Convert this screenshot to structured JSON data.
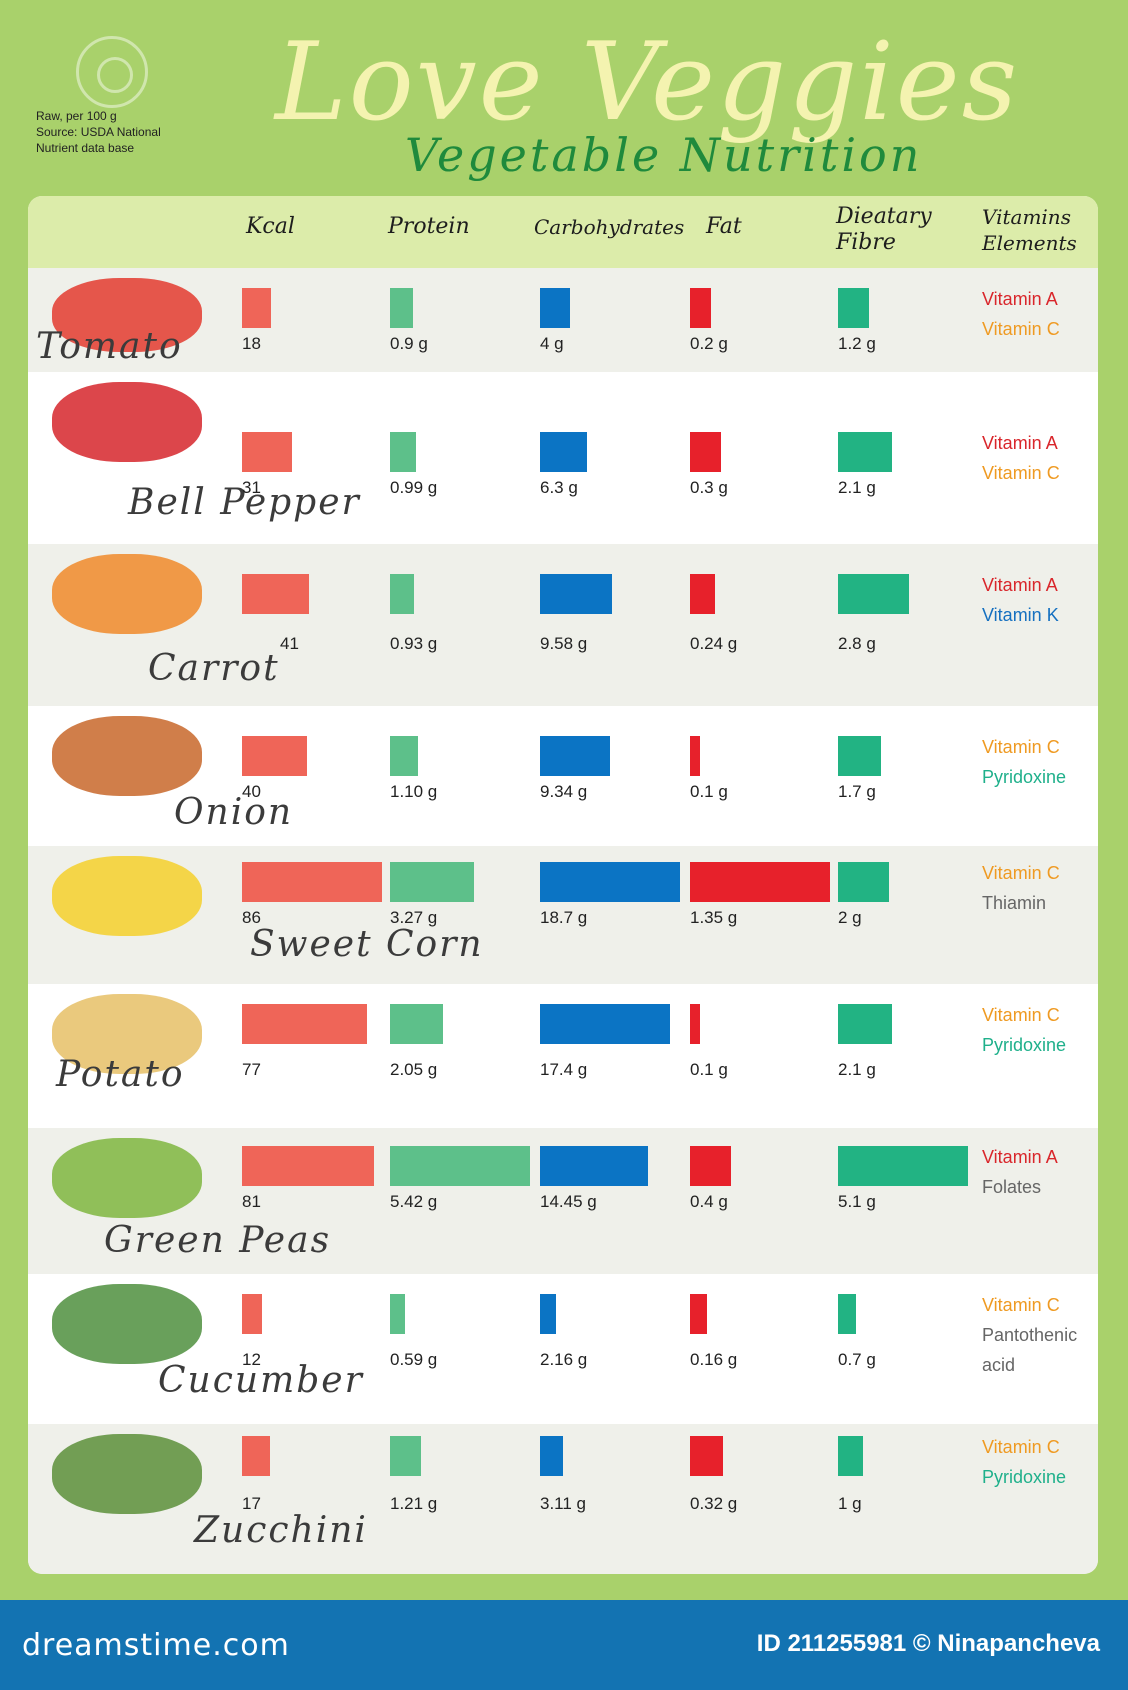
{
  "title": "Love Veggies",
  "subtitle": "Vegetable Nutrition",
  "note": {
    "line1": "Raw, per 100 g",
    "line2": "Source: USDA National",
    "line3": "Nutrient data base"
  },
  "headers": {
    "kcal": "Kcal",
    "protein": "Protein",
    "carbs": "Carbohydrates",
    "fat": "Fat",
    "fibre_1": "Dieatary",
    "fibre_2": "Fibre",
    "vit_1": "Vitamins",
    "vit_2": "Elements"
  },
  "colors": {
    "kcal": "#ef6558",
    "protein": "#5dc08a",
    "carbs": "#0b74c4",
    "fat": "#e7212b",
    "fibre": "#22b383",
    "vitamin_a": "#d9262b",
    "vitamin_c": "#ef9a22",
    "vitamin_k": "#1570c0",
    "pyridoxine": "#1fb08b",
    "other": "#666666"
  },
  "chart_data": {
    "type": "table",
    "columns": [
      "Kcal",
      "Protein",
      "Carbohydrates",
      "Fat",
      "Dieatary Fibre",
      "Vitamins Elements"
    ],
    "rows": [
      {
        "name": "Tomato",
        "kcal": 18,
        "kcal_label": "18",
        "protein": 0.9,
        "protein_label": "0.9 g",
        "carbs": 4,
        "carbs_label": "4 g",
        "fat": 0.2,
        "fat_label": "0.2 g",
        "fibre": 1.2,
        "fibre_label": "1.2 g",
        "vitamins": [
          {
            "text": "Vitamin A",
            "color": "#d9262b"
          },
          {
            "text": "Vitamin C",
            "color": "#ef9a22"
          }
        ]
      },
      {
        "name": "Bell Pepper",
        "kcal": 31,
        "kcal_label": "31",
        "protein": 0.99,
        "protein_label": "0.99 g",
        "carbs": 6.3,
        "carbs_label": "6.3 g",
        "fat": 0.3,
        "fat_label": "0.3 g",
        "fibre": 2.1,
        "fibre_label": "2.1 g",
        "vitamins": [
          {
            "text": "Vitamin A",
            "color": "#d9262b"
          },
          {
            "text": "Vitamin C",
            "color": "#ef9a22"
          }
        ]
      },
      {
        "name": "Carrot",
        "kcal": 41,
        "kcal_label": "41",
        "protein": 0.93,
        "protein_label": "0.93 g",
        "carbs": 9.58,
        "carbs_label": "9.58 g",
        "fat": 0.24,
        "fat_label": "0.24 g",
        "fibre": 2.8,
        "fibre_label": "2.8 g",
        "vitamins": [
          {
            "text": "Vitamin A",
            "color": "#d9262b"
          },
          {
            "text": "Vitamin K",
            "color": "#1570c0"
          }
        ]
      },
      {
        "name": "Onion",
        "kcal": 40,
        "kcal_label": "40",
        "protein": 1.1,
        "protein_label": "1.10 g",
        "carbs": 9.34,
        "carbs_label": "9.34 g",
        "fat": 0.1,
        "fat_label": "0.1 g",
        "fibre": 1.7,
        "fibre_label": "1.7 g",
        "vitamins": [
          {
            "text": "Vitamin C",
            "color": "#ef9a22"
          },
          {
            "text": "Pyridoxine",
            "color": "#1fb08b"
          }
        ]
      },
      {
        "name": "Sweet Corn",
        "kcal": 86,
        "kcal_label": "86",
        "protein": 3.27,
        "protein_label": "3.27 g",
        "carbs": 18.7,
        "carbs_label": "18.7 g",
        "fat": 1.35,
        "fat_label": "1.35 g",
        "fibre": 2,
        "fibre_label": "2 g",
        "vitamins": [
          {
            "text": "Vitamin C",
            "color": "#ef9a22"
          },
          {
            "text": "Thiamin",
            "color": "#666666"
          }
        ]
      },
      {
        "name": "Potato",
        "kcal": 77,
        "kcal_label": "77",
        "protein": 2.05,
        "protein_label": "2.05 g",
        "carbs": 17.4,
        "carbs_label": "17.4 g",
        "fat": 0.1,
        "fat_label": "0.1 g",
        "fibre": 2.1,
        "fibre_label": "2.1 g",
        "vitamins": [
          {
            "text": "Vitamin C",
            "color": "#ef9a22"
          },
          {
            "text": "Pyridoxine",
            "color": "#1fb08b"
          }
        ]
      },
      {
        "name": "Green Peas",
        "kcal": 81,
        "kcal_label": "81",
        "protein": 5.42,
        "protein_label": "5.42 g",
        "carbs": 14.45,
        "carbs_label": "14.45 g",
        "fat": 0.4,
        "fat_label": "0.4 g",
        "fibre": 5.1,
        "fibre_label": "5.1 g",
        "vitamins": [
          {
            "text": "Vitamin A",
            "color": "#d9262b"
          },
          {
            "text": "Folates",
            "color": "#666666"
          }
        ]
      },
      {
        "name": "Cucumber",
        "kcal": 12,
        "kcal_label": "12",
        "protein": 0.59,
        "protein_label": "0.59 g",
        "carbs": 2.16,
        "carbs_label": "2.16 g",
        "fat": 0.16,
        "fat_label": "0.16 g",
        "fibre": 0.7,
        "fibre_label": "0.7 g",
        "vitamins": [
          {
            "text": "Vitamin C",
            "color": "#ef9a22"
          },
          {
            "text": "Pantothenic",
            "color": "#666666"
          },
          {
            "text": "acid",
            "color": "#666666"
          }
        ]
      },
      {
        "name": "Zucchini",
        "kcal": 17,
        "kcal_label": "17",
        "protein": 1.21,
        "protein_label": "1.21 g",
        "carbs": 3.11,
        "carbs_label": "3.11 g",
        "fat": 0.32,
        "fat_label": "0.32 g",
        "fibre": 1,
        "fibre_label": "1 g",
        "vitamins": [
          {
            "text": "Vitamin C",
            "color": "#ef9a22"
          },
          {
            "text": "Pyridoxine",
            "color": "#1fb08b"
          }
        ]
      }
    ]
  },
  "footer": {
    "logo": "dreamstime.com",
    "id": "ID 211255981 © Ninapancheva"
  }
}
